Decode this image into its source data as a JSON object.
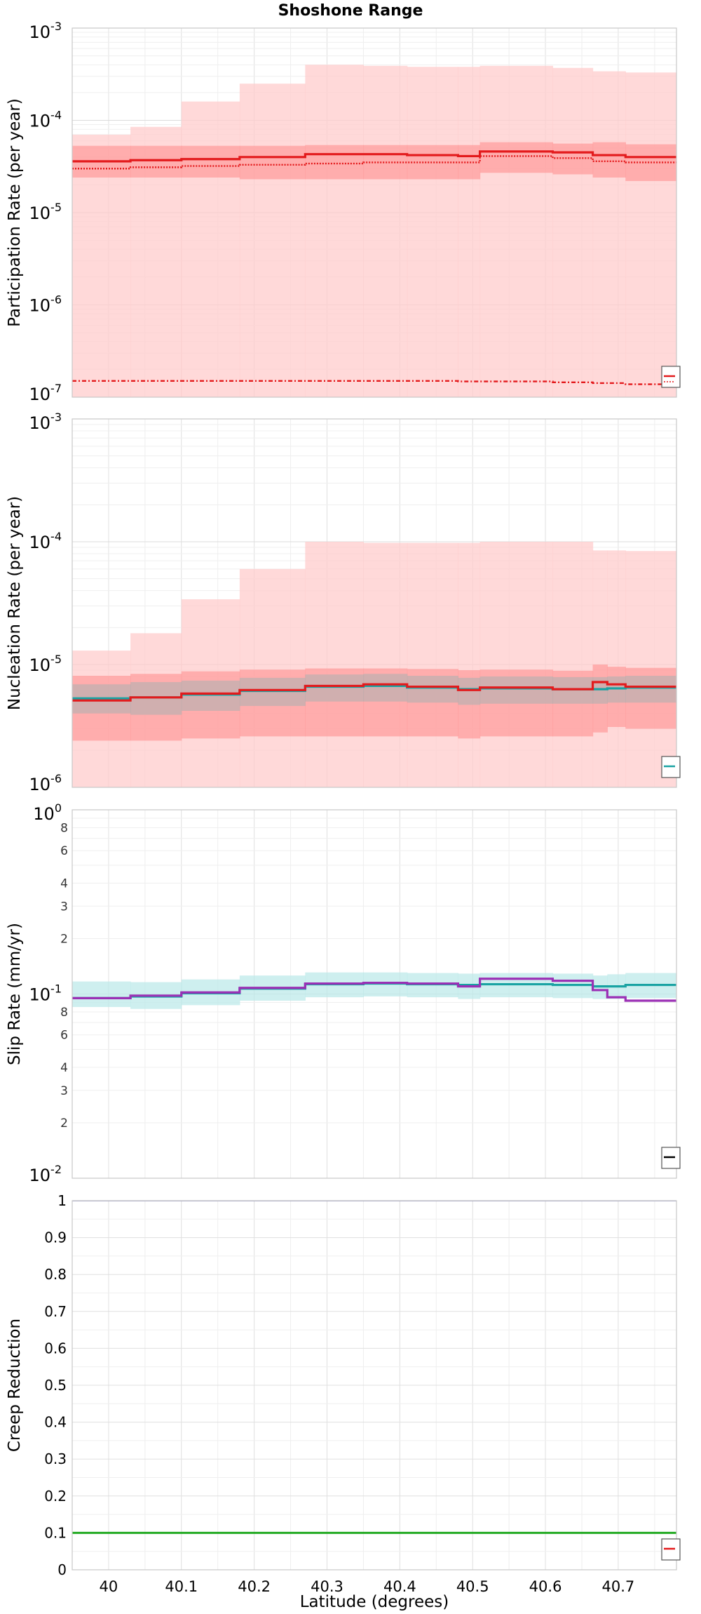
{
  "title": "Shoshone Range",
  "xlabel": "Latitude (degrees)",
  "colors": {
    "red": "#e31a1c",
    "pink_band": "#ffcccc",
    "red_band": "#ff9a9a",
    "gray_band": "#b0b0b0",
    "teal": "#1aa3a3",
    "teal_band": "#bdeaea",
    "purple": "#9b30b5",
    "navy": "#26268c",
    "green": "#22aa22",
    "grid": "#e6e6e6"
  },
  "chart_data": [
    {
      "type": "line",
      "panel": "participation",
      "ylabel": "Participation Rate (per year)",
      "yscale": "log",
      "ylim": [
        1e-07,
        0.001
      ],
      "xlim": [
        39.95,
        40.78
      ],
      "grid": true,
      "legend": "bottom-right (clipped)",
      "x_edges": [
        39.95,
        40.03,
        40.1,
        40.18,
        40.27,
        40.35,
        40.41,
        40.48,
        40.51,
        40.61,
        40.665,
        40.71,
        40.78
      ],
      "series": [
        {
          "style": "solid",
          "values": [
            3.6e-05,
            3.7e-05,
            3.8e-05,
            4e-05,
            4.3e-05,
            4.3e-05,
            4.2e-05,
            4.1e-05,
            4.6e-05,
            4.5e-05,
            4.2e-05,
            4e-05
          ]
        },
        {
          "style": "dotted",
          "values": [
            3e-05,
            3.1e-05,
            3.2e-05,
            3.3e-05,
            3.4e-05,
            3.5e-05,
            3.5e-05,
            3.5e-05,
            4.1e-05,
            3.9e-05,
            3.6e-05,
            3.5e-05
          ]
        },
        {
          "style": "dashdot",
          "values": [
            1.5e-07,
            1.5e-07,
            1.5e-07,
            1.5e-07,
            1.5e-07,
            1.5e-07,
            1.5e-07,
            1.48e-07,
            1.48e-07,
            1.45e-07,
            1.42e-07,
            1.38e-07
          ]
        }
      ],
      "bands": [
        {
          "fill": "pink_band",
          "lower": [
            1e-07,
            1e-07,
            1e-07,
            1e-07,
            1e-07,
            1e-07,
            1e-07,
            1e-07,
            1e-07,
            1e-07,
            1e-07,
            1e-07
          ],
          "upper": [
            7e-05,
            8.5e-05,
            0.00016,
            0.00025,
            0.0004,
            0.00039,
            0.00038,
            0.00038,
            0.00039,
            0.00037,
            0.00034,
            0.00033
          ]
        },
        {
          "fill": "red_band",
          "lower": [
            2.4e-05,
            2.4e-05,
            2.4e-05,
            2.3e-05,
            2.3e-05,
            2.3e-05,
            2.3e-05,
            2.3e-05,
            2.7e-05,
            2.6e-05,
            2.4e-05,
            2.2e-05
          ],
          "upper": [
            5.3e-05,
            5.3e-05,
            5.3e-05,
            5.3e-05,
            5.4e-05,
            5.4e-05,
            5.4e-05,
            5.4e-05,
            5.8e-05,
            5.6e-05,
            5.8e-05,
            5.5e-05
          ]
        }
      ]
    },
    {
      "type": "line",
      "panel": "nucleation",
      "ylabel": "Nucleation Rate (per year)",
      "yscale": "log",
      "ylim": [
        1e-06,
        0.001
      ],
      "xlim": [
        39.95,
        40.78
      ],
      "grid": true,
      "legend": "bottom-right (clipped)",
      "x_edges": [
        39.95,
        40.03,
        40.1,
        40.18,
        40.27,
        40.35,
        40.41,
        40.48,
        40.51,
        40.61,
        40.665,
        40.685,
        40.71,
        40.78
      ],
      "series": [
        {
          "name": "",
          "color": "teal",
          "values": [
            5.3e-06,
            5.4e-06,
            5.7e-06,
            6.1e-06,
            6.6e-06,
            6.7e-06,
            6.5e-06,
            6.3e-06,
            6.4e-06,
            6.3e-06,
            6.3e-06,
            6.4e-06,
            6.5e-06
          ]
        },
        {
          "name": "",
          "color": "red",
          "values": [
            5.1e-06,
            5.4e-06,
            5.8e-06,
            6.2e-06,
            6.7e-06,
            6.9e-06,
            6.6e-06,
            6.2e-06,
            6.5e-06,
            6.3e-06,
            7.2e-06,
            6.9e-06,
            6.6e-06
          ]
        }
      ],
      "bands": [
        {
          "fill": "pink_band",
          "lower": [
            1e-06,
            1e-06,
            1e-06,
            1e-06,
            1e-06,
            1e-06,
            1e-06,
            1e-06,
            1e-06,
            1e-06,
            1e-06,
            1e-06,
            1e-06
          ],
          "upper": [
            1.3e-05,
            1.8e-05,
            3.4e-05,
            6e-05,
            0.0001,
            9.8e-05,
            9.8e-05,
            9.8e-05,
            0.0001,
            0.0001,
            8.5e-05,
            8.5e-05,
            8.4e-05
          ]
        },
        {
          "fill": "red_band",
          "lower": [
            2.4e-06,
            2.4e-06,
            2.5e-06,
            2.6e-06,
            2.6e-06,
            2.6e-06,
            2.6e-06,
            2.5e-06,
            2.6e-06,
            2.6e-06,
            2.8e-06,
            3.1e-06,
            3e-06
          ],
          "upper": [
            8.1e-06,
            8.4e-06,
            8.8e-06,
            9.1e-06,
            9.3e-06,
            9.3e-06,
            9.2e-06,
            9e-06,
            9.1e-06,
            8.9e-06,
            1e-05,
            9.6e-06,
            9.4e-06
          ]
        },
        {
          "fill": "gray_band",
          "lower": [
            4e-06,
            3.9e-06,
            4.2e-06,
            4.6e-06,
            5e-06,
            5e-06,
            4.9e-06,
            4.7e-06,
            4.8e-06,
            4.8e-06,
            4.8e-06,
            4.9e-06,
            4.9e-06
          ],
          "upper": [
            6.9e-06,
            7.2e-06,
            7.4e-06,
            7.8e-06,
            8.3e-06,
            8.4e-06,
            8.1e-06,
            7.8e-06,
            8e-06,
            7.9e-06,
            7.9e-06,
            8e-06,
            8.1e-06
          ]
        }
      ]
    },
    {
      "type": "line",
      "panel": "slip",
      "ylabel": "Slip Rate (mm/yr)",
      "yscale": "log",
      "ylim": [
        0.01,
        1
      ],
      "xlim": [
        39.95,
        40.78
      ],
      "grid": true,
      "legend": "bottom-right (clipped)",
      "x_edges": [
        39.95,
        40.03,
        40.1,
        40.18,
        40.27,
        40.35,
        40.41,
        40.48,
        40.51,
        40.61,
        40.665,
        40.685,
        40.71,
        40.78
      ],
      "series": [
        {
          "name": "",
          "color": "teal",
          "values": [
            0.095,
            0.097,
            0.101,
            0.107,
            0.113,
            0.114,
            0.113,
            0.112,
            0.113,
            0.112,
            0.11,
            0.11,
            0.112
          ]
        },
        {
          "name": "",
          "color": "purple",
          "values": [
            0.095,
            0.098,
            0.102,
            0.108,
            0.114,
            0.115,
            0.114,
            0.11,
            0.121,
            0.118,
            0.105,
            0.096,
            0.092
          ]
        }
      ],
      "bands": [
        {
          "fill": "teal_band",
          "lower": [
            0.085,
            0.083,
            0.087,
            0.092,
            0.096,
            0.097,
            0.096,
            0.094,
            0.096,
            0.095,
            0.094,
            0.094,
            0.095
          ],
          "upper": [
            0.117,
            0.116,
            0.12,
            0.126,
            0.131,
            0.131,
            0.13,
            0.129,
            0.13,
            0.129,
            0.126,
            0.128,
            0.13
          ]
        }
      ]
    },
    {
      "type": "line",
      "panel": "creep",
      "ylabel": "Creep Reduction",
      "yscale": "linear",
      "ylim": [
        0,
        1
      ],
      "xlim": [
        39.95,
        40.78
      ],
      "grid": true,
      "legend": "bottom-right (clipped)",
      "yticks": [
        "0",
        "0.1",
        "0.2",
        "0.3",
        "0.4",
        "0.5",
        "0.6",
        "0.7",
        "0.8",
        "0.9",
        "1"
      ],
      "xticks": [
        "40",
        "40.1",
        "40.2",
        "40.3",
        "40.4",
        "40.5",
        "40.6",
        "40.7"
      ],
      "series": [
        {
          "name": "",
          "color": "navy",
          "values": [
            1,
            1
          ]
        },
        {
          "name": "",
          "color": "green",
          "values": [
            0.1,
            0.1
          ]
        }
      ]
    }
  ]
}
